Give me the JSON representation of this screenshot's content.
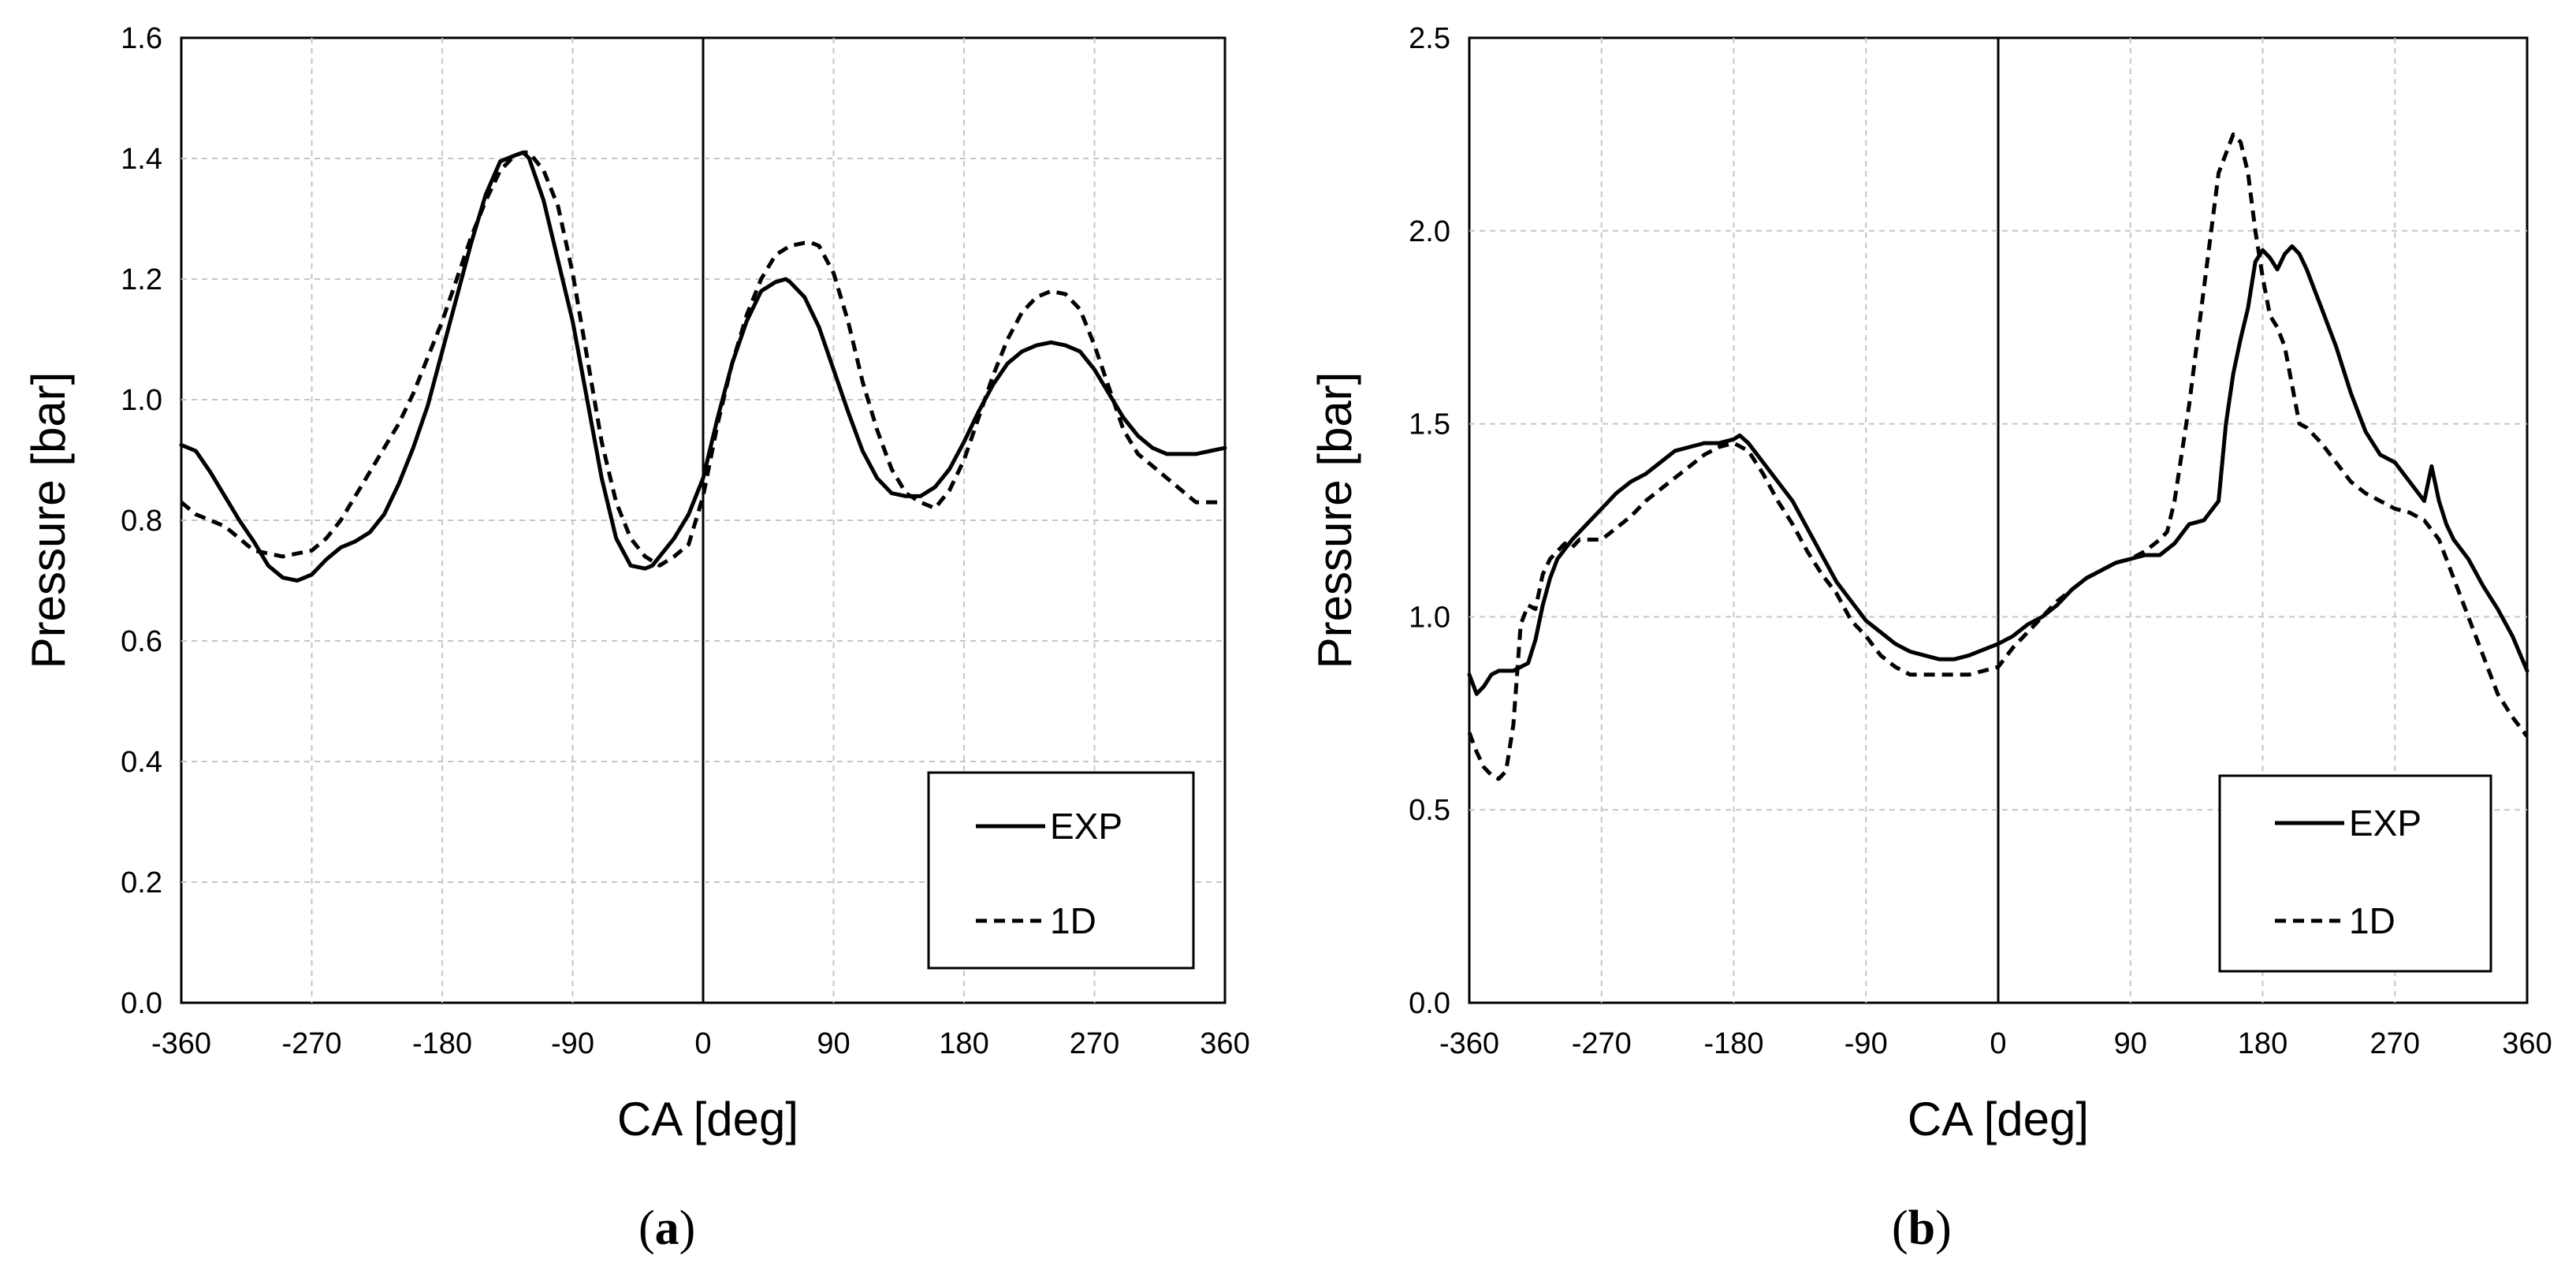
{
  "chart_data": [
    {
      "type": "line",
      "panel_label": "a",
      "title": "",
      "xlabel": "CA [deg]",
      "ylabel": "Pressure [bar]",
      "xlim": [
        -360,
        360
      ],
      "ylim": [
        0.0,
        1.6
      ],
      "xticks": [
        -360,
        -270,
        -180,
        -90,
        0,
        90,
        180,
        270,
        360
      ],
      "xtick_labels": [
        "-360",
        "-270",
        "-180",
        "-90",
        "0",
        "90",
        "180",
        "270",
        "360"
      ],
      "yticks": [
        0.0,
        0.2,
        0.4,
        0.6,
        0.8,
        1.0,
        1.2,
        1.4,
        1.6
      ],
      "ytick_labels": [
        "0.0",
        "0.2",
        "0.4",
        "0.6",
        "0.8",
        "1.0",
        "1.2",
        "1.4",
        "1.6"
      ],
      "grid": true,
      "legend_position": "bottom-right",
      "series": [
        {
          "name": "EXP",
          "style": "solid",
          "x": [
            -360,
            -350,
            -340,
            -330,
            -320,
            -310,
            -300,
            -290,
            -280,
            -270,
            -260,
            -250,
            -240,
            -230,
            -220,
            -210,
            -200,
            -190,
            -180,
            -170,
            -160,
            -150,
            -140,
            -130,
            -124,
            -120,
            -110,
            -100,
            -90,
            -80,
            -70,
            -60,
            -50,
            -40,
            -35,
            -30,
            -20,
            -10,
            0,
            10,
            20,
            30,
            40,
            50,
            57,
            60,
            70,
            80,
            90,
            100,
            110,
            120,
            130,
            140,
            150,
            160,
            170,
            180,
            190,
            200,
            210,
            220,
            230,
            240,
            250,
            260,
            270,
            280,
            290,
            300,
            310,
            320,
            330,
            340,
            350,
            360
          ],
          "y": [
            0.925,
            0.915,
            0.88,
            0.84,
            0.8,
            0.765,
            0.725,
            0.705,
            0.7,
            0.71,
            0.735,
            0.755,
            0.765,
            0.78,
            0.81,
            0.86,
            0.92,
            0.99,
            1.08,
            1.17,
            1.26,
            1.34,
            1.395,
            1.405,
            1.41,
            1.4,
            1.33,
            1.23,
            1.13,
            1.0,
            0.87,
            0.77,
            0.725,
            0.72,
            0.725,
            0.74,
            0.77,
            0.81,
            0.87,
            0.97,
            1.06,
            1.13,
            1.18,
            1.195,
            1.2,
            1.195,
            1.17,
            1.12,
            1.05,
            0.98,
            0.915,
            0.87,
            0.845,
            0.84,
            0.84,
            0.855,
            0.885,
            0.93,
            0.98,
            1.025,
            1.06,
            1.08,
            1.09,
            1.095,
            1.09,
            1.08,
            1.05,
            1.01,
            0.97,
            0.94,
            0.92,
            0.91,
            0.91,
            0.91,
            0.915,
            0.92
          ]
        },
        {
          "name": "1D",
          "style": "dashed",
          "x": [
            -360,
            -350,
            -340,
            -330,
            -320,
            -310,
            -300,
            -290,
            -280,
            -270,
            -260,
            -250,
            -240,
            -230,
            -220,
            -210,
            -200,
            -190,
            -180,
            -170,
            -160,
            -150,
            -140,
            -130,
            -124,
            -120,
            -110,
            -100,
            -90,
            -80,
            -70,
            -60,
            -50,
            -40,
            -30,
            -20,
            -10,
            0,
            10,
            20,
            30,
            40,
            50,
            60,
            70,
            75,
            80,
            90,
            100,
            110,
            120,
            130,
            140,
            150,
            160,
            170,
            180,
            190,
            200,
            210,
            220,
            230,
            240,
            250,
            260,
            270,
            280,
            290,
            300,
            310,
            320,
            330,
            340,
            350,
            360
          ],
          "y": [
            0.83,
            0.81,
            0.8,
            0.79,
            0.77,
            0.75,
            0.745,
            0.74,
            0.745,
            0.75,
            0.77,
            0.8,
            0.84,
            0.88,
            0.92,
            0.96,
            1.01,
            1.07,
            1.13,
            1.2,
            1.27,
            1.33,
            1.38,
            1.405,
            1.41,
            1.41,
            1.38,
            1.32,
            1.21,
            1.07,
            0.93,
            0.83,
            0.77,
            0.74,
            0.725,
            0.74,
            0.76,
            0.84,
            0.96,
            1.06,
            1.14,
            1.2,
            1.24,
            1.255,
            1.26,
            1.26,
            1.255,
            1.21,
            1.13,
            1.03,
            0.95,
            0.885,
            0.845,
            0.83,
            0.82,
            0.85,
            0.9,
            0.97,
            1.04,
            1.1,
            1.145,
            1.17,
            1.18,
            1.175,
            1.15,
            1.09,
            1.02,
            0.95,
            0.91,
            0.89,
            0.87,
            0.85,
            0.83,
            0.83,
            0.83
          ]
        }
      ]
    },
    {
      "type": "line",
      "panel_label": "b",
      "title": "",
      "xlabel": "CA [deg]",
      "ylabel": "Pressure [bar]",
      "xlim": [
        -360,
        360
      ],
      "ylim": [
        0.0,
        2.5
      ],
      "xticks": [
        -360,
        -270,
        -180,
        -90,
        0,
        90,
        180,
        270,
        360
      ],
      "xtick_labels": [
        "-360",
        "-270",
        "-180",
        "-90",
        "0",
        "90",
        "180",
        "270",
        "360"
      ],
      "yticks": [
        0.0,
        0.5,
        1.0,
        1.5,
        2.0,
        2.5
      ],
      "ytick_labels": [
        "0.0",
        "0.5",
        "1.0",
        "1.5",
        "2.0",
        "2.5"
      ],
      "grid": true,
      "legend_position": "bottom-right",
      "series": [
        {
          "name": "EXP",
          "style": "solid",
          "x": [
            -360,
            -355,
            -350,
            -345,
            -340,
            -330,
            -320,
            -315,
            -310,
            -305,
            -300,
            -290,
            -280,
            -270,
            -260,
            -250,
            -240,
            -230,
            -220,
            -210,
            -200,
            -190,
            -180,
            -176,
            -170,
            -160,
            -150,
            -140,
            -130,
            -120,
            -110,
            -100,
            -90,
            -80,
            -70,
            -60,
            -50,
            -40,
            -30,
            -20,
            0,
            10,
            20,
            30,
            40,
            50,
            60,
            70,
            80,
            90,
            100,
            110,
            120,
            130,
            140,
            150,
            155,
            160,
            165,
            170,
            175,
            180,
            185,
            190,
            195,
            200,
            205,
            210,
            220,
            230,
            240,
            250,
            260,
            270,
            280,
            290,
            295,
            300,
            305,
            310,
            320,
            330,
            340,
            350,
            360
          ],
          "y": [
            0.85,
            0.8,
            0.82,
            0.85,
            0.86,
            0.86,
            0.88,
            0.94,
            1.03,
            1.1,
            1.15,
            1.2,
            1.24,
            1.28,
            1.32,
            1.35,
            1.37,
            1.4,
            1.43,
            1.44,
            1.45,
            1.45,
            1.46,
            1.47,
            1.45,
            1.4,
            1.35,
            1.3,
            1.23,
            1.16,
            1.09,
            1.04,
            0.99,
            0.96,
            0.93,
            0.91,
            0.9,
            0.89,
            0.89,
            0.9,
            0.93,
            0.95,
            0.98,
            1.0,
            1.03,
            1.07,
            1.1,
            1.12,
            1.14,
            1.15,
            1.16,
            1.16,
            1.19,
            1.24,
            1.25,
            1.3,
            1.5,
            1.63,
            1.72,
            1.8,
            1.92,
            1.95,
            1.93,
            1.9,
            1.94,
            1.96,
            1.94,
            1.9,
            1.8,
            1.7,
            1.58,
            1.48,
            1.42,
            1.4,
            1.35,
            1.3,
            1.39,
            1.3,
            1.24,
            1.2,
            1.15,
            1.08,
            1.02,
            0.95,
            0.86
          ]
        },
        {
          "name": "1D",
          "style": "dashed",
          "x": [
            -360,
            -355,
            -350,
            -345,
            -340,
            -335,
            -330,
            -325,
            -320,
            -315,
            -310,
            -305,
            -300,
            -295,
            -290,
            -285,
            -280,
            -270,
            -260,
            -250,
            -240,
            -230,
            -220,
            -210,
            -200,
            -190,
            -180,
            -170,
            -160,
            -150,
            -140,
            -130,
            -120,
            -110,
            -100,
            -90,
            -80,
            -70,
            -60,
            -50,
            -40,
            -30,
            -20,
            -10,
            0,
            10,
            20,
            30,
            40,
            50,
            60,
            70,
            80,
            90,
            100,
            110,
            115,
            120,
            130,
            140,
            150,
            160,
            165,
            170,
            175,
            180,
            185,
            190,
            195,
            200,
            205,
            210,
            220,
            230,
            240,
            250,
            260,
            270,
            280,
            290,
            300,
            310,
            320,
            330,
            340,
            350,
            360
          ],
          "y": [
            0.7,
            0.65,
            0.61,
            0.59,
            0.58,
            0.6,
            0.72,
            0.98,
            1.03,
            1.02,
            1.11,
            1.15,
            1.17,
            1.19,
            1.18,
            1.2,
            1.2,
            1.2,
            1.23,
            1.26,
            1.3,
            1.33,
            1.36,
            1.39,
            1.42,
            1.44,
            1.45,
            1.43,
            1.37,
            1.3,
            1.24,
            1.17,
            1.11,
            1.06,
            0.99,
            0.95,
            0.9,
            0.87,
            0.85,
            0.85,
            0.85,
            0.85,
            0.85,
            0.86,
            0.87,
            0.92,
            0.96,
            1.0,
            1.04,
            1.07,
            1.1,
            1.12,
            1.14,
            1.15,
            1.17,
            1.2,
            1.22,
            1.3,
            1.55,
            1.85,
            2.15,
            2.25,
            2.23,
            2.15,
            2.0,
            1.88,
            1.78,
            1.75,
            1.7,
            1.6,
            1.5,
            1.49,
            1.45,
            1.4,
            1.35,
            1.32,
            1.3,
            1.28,
            1.27,
            1.25,
            1.2,
            1.1,
            1.0,
            0.9,
            0.8,
            0.74,
            0.69
          ]
        }
      ]
    }
  ]
}
